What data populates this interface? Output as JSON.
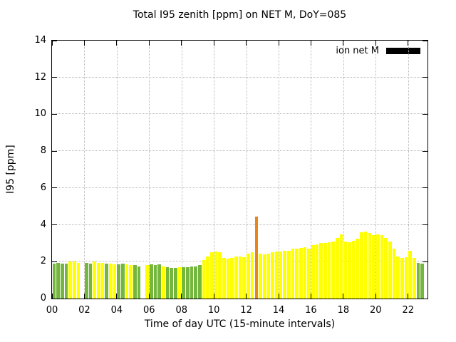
{
  "chart_data": {
    "type": "bar",
    "title": "Total I95 zenith [ppm] on NET M, DoY=085",
    "xlabel": "Time of day UTC (15-minute intervals)",
    "ylabel": "I95 [ppm]",
    "xlim": [
      0,
      23.2
    ],
    "ylim": [
      0,
      14
    ],
    "grid": true,
    "legend": {
      "label": "ion net M",
      "swatch_color": "#000000",
      "position": "inside top-right"
    },
    "x_ticks": [
      {
        "v": 0,
        "label": "00"
      },
      {
        "v": 2,
        "label": "02"
      },
      {
        "v": 4,
        "label": "04"
      },
      {
        "v": 6,
        "label": "06"
      },
      {
        "v": 8,
        "label": "08"
      },
      {
        "v": 10,
        "label": "10"
      },
      {
        "v": 12,
        "label": "12"
      },
      {
        "v": 14,
        "label": "14"
      },
      {
        "v": 16,
        "label": "16"
      },
      {
        "v": 18,
        "label": "18"
      },
      {
        "v": 20,
        "label": "20"
      },
      {
        "v": 22,
        "label": "22"
      }
    ],
    "y_ticks": [
      {
        "v": 0,
        "label": "0"
      },
      {
        "v": 2,
        "label": "2"
      },
      {
        "v": 4,
        "label": "4"
      },
      {
        "v": 6,
        "label": "6"
      },
      {
        "v": 8,
        "label": "8"
      },
      {
        "v": 10,
        "label": "10"
      },
      {
        "v": 12,
        "label": "12"
      },
      {
        "v": 14,
        "label": "14"
      }
    ],
    "bar_interval_hours": 0.25,
    "colors": {
      "green": "#74b63e",
      "yellow": "#ffff00",
      "orange": "#e8861a"
    },
    "bars": [
      [
        0.0,
        1.9,
        "green"
      ],
      [
        0.25,
        1.95,
        "green"
      ],
      [
        0.5,
        1.9,
        "green"
      ],
      [
        0.75,
        1.9,
        "green"
      ],
      [
        1.0,
        2.0,
        "yellow"
      ],
      [
        1.25,
        2.0,
        "yellow"
      ],
      [
        1.5,
        1.95,
        "yellow"
      ],
      [
        1.75,
        0,
        "gap"
      ],
      [
        2.0,
        1.95,
        "green"
      ],
      [
        2.25,
        1.9,
        "green"
      ],
      [
        2.5,
        2.0,
        "yellow"
      ],
      [
        2.75,
        1.95,
        "yellow"
      ],
      [
        3.0,
        1.95,
        "yellow"
      ],
      [
        3.25,
        1.9,
        "green"
      ],
      [
        3.5,
        1.9,
        "yellow"
      ],
      [
        3.75,
        1.85,
        "yellow"
      ],
      [
        4.0,
        1.85,
        "green"
      ],
      [
        4.25,
        1.9,
        "green"
      ],
      [
        4.5,
        1.85,
        "yellow"
      ],
      [
        4.75,
        1.8,
        "yellow"
      ],
      [
        5.0,
        1.8,
        "green"
      ],
      [
        5.25,
        1.75,
        "green"
      ],
      [
        5.5,
        0,
        "gap"
      ],
      [
        5.75,
        1.8,
        "yellow"
      ],
      [
        6.0,
        1.85,
        "green"
      ],
      [
        6.25,
        1.8,
        "green"
      ],
      [
        6.5,
        1.85,
        "green"
      ],
      [
        6.75,
        1.75,
        "yellow"
      ],
      [
        7.0,
        1.7,
        "green"
      ],
      [
        7.25,
        1.65,
        "green"
      ],
      [
        7.5,
        1.65,
        "green"
      ],
      [
        7.75,
        1.7,
        "yellow"
      ],
      [
        8.0,
        1.7,
        "green"
      ],
      [
        8.25,
        1.7,
        "green"
      ],
      [
        8.5,
        1.75,
        "green"
      ],
      [
        8.75,
        1.75,
        "green"
      ],
      [
        9.0,
        1.8,
        "green"
      ],
      [
        9.25,
        2.1,
        "yellow"
      ],
      [
        9.5,
        2.3,
        "yellow"
      ],
      [
        9.75,
        2.5,
        "yellow"
      ],
      [
        10.0,
        2.55,
        "yellow"
      ],
      [
        10.25,
        2.5,
        "yellow"
      ],
      [
        10.5,
        2.2,
        "yellow"
      ],
      [
        10.75,
        2.15,
        "yellow"
      ],
      [
        11.0,
        2.2,
        "yellow"
      ],
      [
        11.25,
        2.3,
        "yellow"
      ],
      [
        11.5,
        2.3,
        "yellow"
      ],
      [
        11.75,
        2.25,
        "yellow"
      ],
      [
        12.0,
        2.45,
        "yellow"
      ],
      [
        12.25,
        2.5,
        "yellow"
      ],
      [
        12.5,
        4.45,
        "orange"
      ],
      [
        12.75,
        2.45,
        "yellow"
      ],
      [
        13.0,
        2.4,
        "yellow"
      ],
      [
        13.25,
        2.45,
        "yellow"
      ],
      [
        13.5,
        2.5,
        "yellow"
      ],
      [
        13.75,
        2.55,
        "yellow"
      ],
      [
        14.0,
        2.55,
        "yellow"
      ],
      [
        14.25,
        2.6,
        "yellow"
      ],
      [
        14.5,
        2.6,
        "yellow"
      ],
      [
        14.75,
        2.7,
        "yellow"
      ],
      [
        15.0,
        2.7,
        "yellow"
      ],
      [
        15.25,
        2.75,
        "yellow"
      ],
      [
        15.5,
        2.8,
        "yellow"
      ],
      [
        15.75,
        2.7,
        "yellow"
      ],
      [
        16.0,
        2.9,
        "yellow"
      ],
      [
        16.25,
        2.95,
        "yellow"
      ],
      [
        16.5,
        3.0,
        "yellow"
      ],
      [
        16.75,
        3.0,
        "yellow"
      ],
      [
        17.0,
        3.05,
        "yellow"
      ],
      [
        17.25,
        3.1,
        "yellow"
      ],
      [
        17.5,
        3.3,
        "yellow"
      ],
      [
        17.75,
        3.5,
        "yellow"
      ],
      [
        18.0,
        3.1,
        "yellow"
      ],
      [
        18.25,
        3.05,
        "yellow"
      ],
      [
        18.5,
        3.15,
        "yellow"
      ],
      [
        18.75,
        3.25,
        "yellow"
      ],
      [
        19.0,
        3.6,
        "yellow"
      ],
      [
        19.25,
        3.65,
        "yellow"
      ],
      [
        19.5,
        3.55,
        "yellow"
      ],
      [
        19.75,
        3.45,
        "yellow"
      ],
      [
        20.0,
        3.5,
        "yellow"
      ],
      [
        20.25,
        3.45,
        "yellow"
      ],
      [
        20.5,
        3.3,
        "yellow"
      ],
      [
        20.75,
        3.1,
        "yellow"
      ],
      [
        21.0,
        2.7,
        "yellow"
      ],
      [
        21.25,
        2.3,
        "yellow"
      ],
      [
        21.5,
        2.2,
        "yellow"
      ],
      [
        21.75,
        2.25,
        "yellow"
      ],
      [
        22.0,
        2.6,
        "yellow"
      ],
      [
        22.25,
        2.2,
        "yellow"
      ],
      [
        22.5,
        1.95,
        "green"
      ],
      [
        22.75,
        1.9,
        "green"
      ]
    ]
  }
}
